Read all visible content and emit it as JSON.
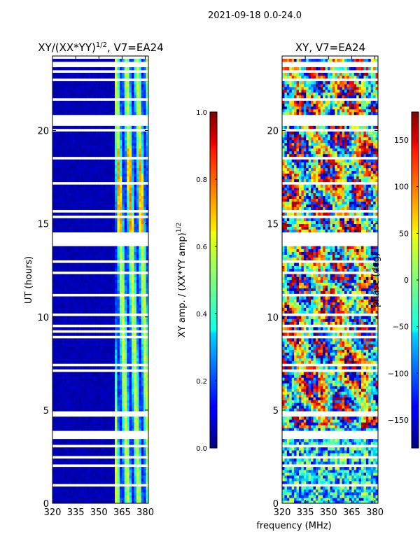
{
  "suptitle": "2021-09-18 0.0-24.0",
  "xlabel": "frequency (MHz)",
  "chart_data": [
    {
      "type": "heatmap",
      "title_main": "XY/(XX*YY)",
      "title_exp": "1/2",
      "title_suffix": ", V7=EA24",
      "ylabel": "UT (hours)",
      "xlim": [
        320,
        382
      ],
      "ylim": [
        0,
        24
      ],
      "xticks": [
        320,
        335,
        350,
        365,
        380
      ],
      "yticks": [
        0,
        5,
        10,
        15,
        20
      ],
      "colormap": "jet",
      "colorbar": {
        "label_main": "XY amp. / (XX*YY amp)",
        "label_exp": "1/2",
        "range": [
          0.0,
          1.0
        ],
        "ticks": [
          "0.0",
          "0.2",
          "0.4",
          "0.6",
          "0.8",
          "1.0"
        ],
        "tick_values": [
          0.0,
          0.2,
          0.4,
          0.6,
          0.8,
          1.0
        ]
      },
      "description": "Normalized cross-polarization amplitude vs frequency and time; low (~0) below 360 MHz, elevated (~0.3-0.6) in vertical bands near 362-380 MHz; white rows are flagged/missing data"
    },
    {
      "type": "heatmap",
      "title": "XY, V7=EA24",
      "xlim": [
        320,
        382
      ],
      "ylim": [
        0,
        24
      ],
      "xticks": [
        320,
        335,
        350,
        365,
        380
      ],
      "yticks": [
        0,
        5,
        10,
        15,
        20
      ],
      "colormap": "jet",
      "colorbar": {
        "label": "phase (deg)",
        "range": [
          -180,
          180
        ],
        "ticks": [
          "150",
          "100",
          "50",
          "0",
          "−50",
          "−100",
          "−150"
        ],
        "tick_values": [
          150,
          100,
          50,
          0,
          -50,
          -100,
          -150
        ]
      },
      "description": "Cross-polarization phase vs frequency and time; noisy multi-color structure with flagged white rows"
    }
  ]
}
